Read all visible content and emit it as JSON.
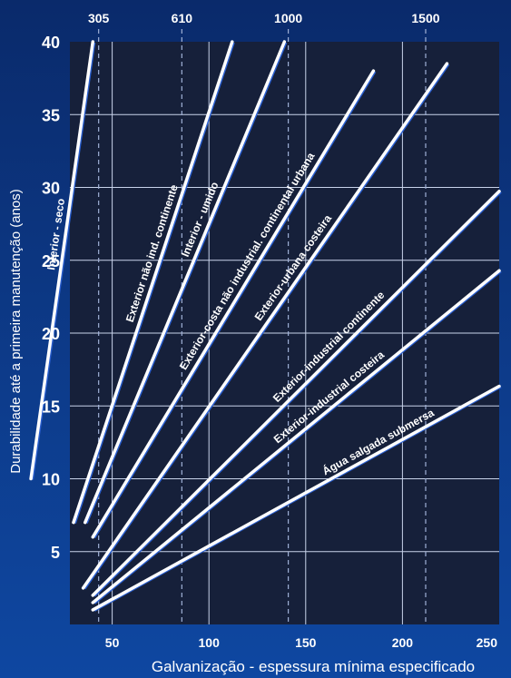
{
  "chart_data": {
    "type": "line",
    "title": "",
    "xlabel": "Galvanização - espessura mínima especificado",
    "ylabel": "Durabilidade até a primeira manutenção (anos)",
    "xlim": [
      0,
      250
    ],
    "ylim": [
      0,
      40
    ],
    "x_ticks": [
      {
        "value": 50,
        "label": "50"
      },
      {
        "value": 100,
        "label": "100"
      },
      {
        "value": 150,
        "label": "150"
      },
      {
        "value": 200,
        "label": "200"
      },
      {
        "value": 250,
        "label": "250"
      }
    ],
    "y_ticks": [
      {
        "value": 5,
        "label": "5"
      },
      {
        "value": 10,
        "label": "10"
      },
      {
        "value": 15,
        "label": "15"
      },
      {
        "value": 20,
        "label": "20"
      },
      {
        "value": 25,
        "label": "25"
      },
      {
        "value": 30,
        "label": "30"
      },
      {
        "value": 35,
        "label": "35"
      },
      {
        "value": 40,
        "label": "40"
      }
    ],
    "secondary_x_ticks": [
      {
        "value": 43,
        "label": "305"
      },
      {
        "value": 86,
        "label": "610"
      },
      {
        "value": 141,
        "label": "1000"
      },
      {
        "value": 212,
        "label": "1500"
      }
    ],
    "grid": true,
    "series": [
      {
        "name": "Interior - seco",
        "x": [
          8,
          40
        ],
        "y": [
          10,
          40
        ]
      },
      {
        "name": "Exterior não ind. continente",
        "x": [
          30,
          112
        ],
        "y": [
          7,
          40
        ]
      },
      {
        "name": "Interior - umido",
        "x": [
          36,
          139
        ],
        "y": [
          7,
          40
        ]
      },
      {
        "name": "Exterior-costa não industrial. continental urbana",
        "x": [
          40,
          185
        ],
        "y": [
          6,
          38
        ]
      },
      {
        "name": "Exterior-urbana costeira",
        "x": [
          35,
          223
        ],
        "y": [
          2.5,
          38.5
        ]
      },
      {
        "name": "Exterior-industrial continente",
        "x": [
          40,
          252
        ],
        "y": [
          2,
          30
        ]
      },
      {
        "name": "Exterior-industrial costeira",
        "x": [
          40,
          252
        ],
        "y": [
          1.5,
          24.5
        ]
      },
      {
        "name": "Água salgada submersa",
        "x": [
          40,
          252
        ],
        "y": [
          1,
          16.5
        ]
      }
    ]
  }
}
